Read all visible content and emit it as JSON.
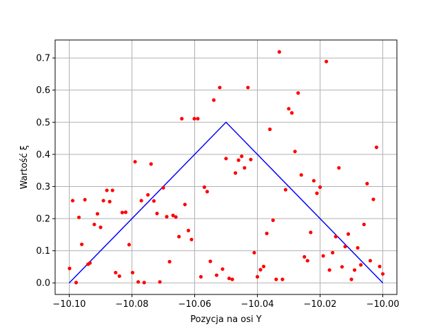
{
  "chart_data": {
    "type": "scatter",
    "title": "",
    "xlabel": "Pozycja na osi Y",
    "ylabel": "Wartość ξ",
    "xlim": [
      -10.1045,
      -9.9955
    ],
    "ylim": [
      -0.036,
      0.756
    ],
    "grid": true,
    "xticks": [
      -10.1,
      -10.08,
      -10.06,
      -10.04,
      -10.02,
      -10.0
    ],
    "xtick_labels": [
      "−10.10",
      "−10.08",
      "−10.06",
      "−10.04",
      "−10.02",
      "−10.00"
    ],
    "yticks": [
      0.0,
      0.1,
      0.2,
      0.3,
      0.4,
      0.5,
      0.6,
      0.7
    ],
    "ytick_labels": [
      "0.0",
      "0.1",
      "0.2",
      "0.3",
      "0.4",
      "0.5",
      "0.6",
      "0.7"
    ],
    "colors": {
      "points": "#ff0000",
      "line": "#0000ff",
      "grid": "#b0b0b0"
    },
    "series": [
      {
        "kind": "line",
        "x": [
          -10.1,
          -10.05,
          -10.0
        ],
        "y": [
          0.0,
          0.5,
          0.0
        ]
      },
      {
        "kind": "scatter",
        "points": [
          [
            -10.0999,
            0.045
          ],
          [
            -10.0989,
            0.256
          ],
          [
            -10.0978,
            0.001
          ],
          [
            -10.0969,
            0.204
          ],
          [
            -10.096,
            0.12
          ],
          [
            -10.095,
            0.259
          ],
          [
            -10.094,
            0.058
          ],
          [
            -10.0934,
            0.062
          ],
          [
            -10.092,
            0.182
          ],
          [
            -10.091,
            0.215
          ],
          [
            -10.09,
            0.173
          ],
          [
            -10.0891,
            0.256
          ],
          [
            -10.088,
            0.288
          ],
          [
            -10.0871,
            0.253
          ],
          [
            -10.0862,
            0.288
          ],
          [
            -10.0852,
            0.032
          ],
          [
            -10.084,
            0.021
          ],
          [
            -10.0831,
            0.219
          ],
          [
            -10.082,
            0.22
          ],
          [
            -10.0809,
            0.119
          ],
          [
            -10.0798,
            0.032
          ],
          [
            -10.079,
            0.377
          ],
          [
            -10.078,
            0.003
          ],
          [
            -10.077,
            0.256
          ],
          [
            -10.0761,
            0.001
          ],
          [
            -10.0749,
            0.274
          ],
          [
            -10.0739,
            0.37
          ],
          [
            -10.073,
            0.255
          ],
          [
            -10.072,
            0.216
          ],
          [
            -10.0711,
            0.003
          ],
          [
            -10.07,
            0.296
          ],
          [
            -10.0689,
            0.206
          ],
          [
            -10.068,
            0.066
          ],
          [
            -10.0669,
            0.21
          ],
          [
            -10.066,
            0.205
          ],
          [
            -10.065,
            0.144
          ],
          [
            -10.0641,
            0.511
          ],
          [
            -10.0631,
            0.244
          ],
          [
            -10.062,
            0.163
          ],
          [
            -10.061,
            0.135
          ],
          [
            -10.0601,
            0.511
          ],
          [
            -10.059,
            0.511
          ],
          [
            -10.058,
            0.019
          ],
          [
            -10.0569,
            0.298
          ],
          [
            -10.056,
            0.284
          ],
          [
            -10.055,
            0.067
          ],
          [
            -10.0539,
            0.569
          ],
          [
            -10.053,
            0.024
          ],
          [
            -10.052,
            0.608
          ],
          [
            -10.0511,
            0.043
          ],
          [
            -10.05,
            0.387
          ],
          [
            -10.049,
            0.014
          ],
          [
            -10.048,
            0.011
          ],
          [
            -10.047,
            0.342
          ],
          [
            -10.046,
            0.382
          ],
          [
            -10.045,
            0.394
          ],
          [
            -10.0441,
            0.358
          ],
          [
            -10.043,
            0.608
          ],
          [
            -10.0421,
            0.384
          ],
          [
            -10.041,
            0.094
          ],
          [
            -10.04,
            0.019
          ],
          [
            -10.039,
            0.041
          ],
          [
            -10.038,
            0.051
          ],
          [
            -10.037,
            0.154
          ],
          [
            -10.036,
            0.478
          ],
          [
            -10.035,
            0.195
          ],
          [
            -10.034,
            0.011
          ],
          [
            -10.033,
            0.719
          ],
          [
            -10.032,
            0.011
          ],
          [
            -10.031,
            0.29
          ],
          [
            -10.03,
            0.542
          ],
          [
            -10.029,
            0.529
          ],
          [
            -10.028,
            0.409
          ],
          [
            -10.027,
            0.591
          ],
          [
            -10.026,
            0.336
          ],
          [
            -10.025,
            0.081
          ],
          [
            -10.024,
            0.069
          ],
          [
            -10.023,
            0.157
          ],
          [
            -10.022,
            0.318
          ],
          [
            -10.021,
            0.279
          ],
          [
            -10.02,
            0.298
          ],
          [
            -10.019,
            0.084
          ],
          [
            -10.018,
            0.689
          ],
          [
            -10.017,
            0.04
          ],
          [
            -10.016,
            0.094
          ],
          [
            -10.015,
            0.144
          ],
          [
            -10.014,
            0.358
          ],
          [
            -10.013,
            0.05
          ],
          [
            -10.012,
            0.113
          ],
          [
            -10.011,
            0.152
          ],
          [
            -10.01,
            0.011
          ],
          [
            -10.009,
            0.04
          ],
          [
            -10.008,
            0.109
          ],
          [
            -10.007,
            0.056
          ],
          [
            -10.006,
            0.182
          ],
          [
            -10.005,
            0.309
          ],
          [
            -10.004,
            0.069
          ],
          [
            -10.003,
            0.26
          ],
          [
            -10.002,
            0.422
          ],
          [
            -10.001,
            0.051
          ],
          [
            -10.0,
            0.028
          ]
        ]
      }
    ]
  }
}
